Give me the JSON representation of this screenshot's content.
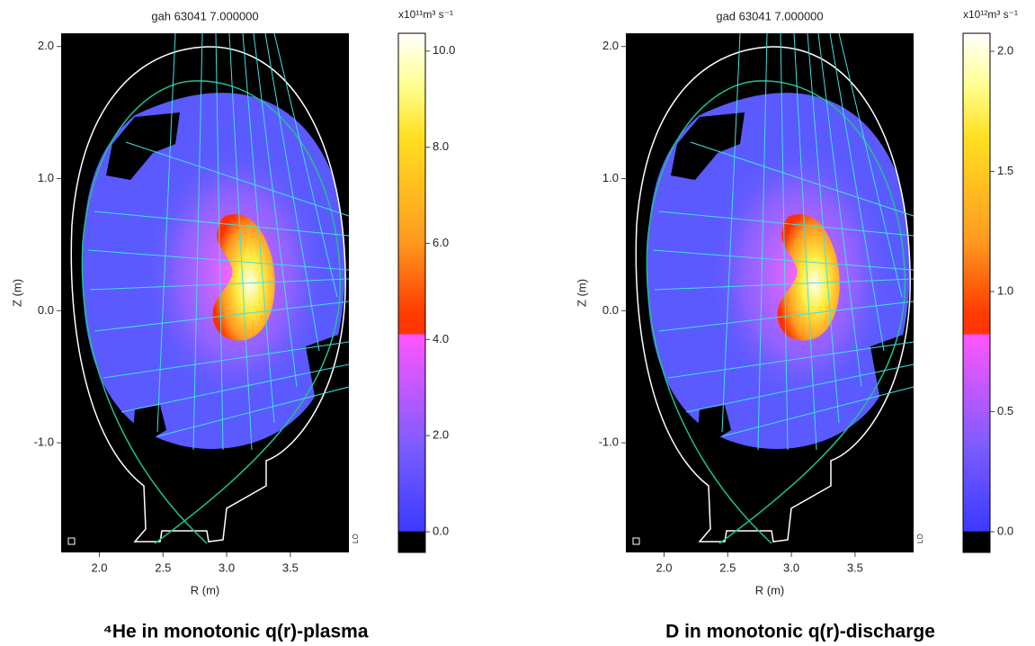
{
  "chart_data": [
    {
      "type": "image",
      "title": "gah  63041 7.000000",
      "caption": "⁴He in monotonic q(r)-plasma",
      "xlabel": "R (m)",
      "ylabel": "Z (m)",
      "annotation": "LO",
      "xlim": [
        1.7,
        3.96
      ],
      "ylim": [
        -1.83,
        2.1
      ],
      "xticks": [
        {
          "value": 2,
          "label": "2.0"
        },
        {
          "value": 2.5,
          "label": "2.5"
        },
        {
          "value": 3,
          "label": "3.0"
        },
        {
          "value": 3.5,
          "label": "3.5"
        }
      ],
      "yticks": [
        {
          "value": -1,
          "label": "-1.0"
        },
        {
          "value": 0,
          "label": "0.0"
        },
        {
          "value": 1,
          "label": "1.0"
        },
        {
          "value": 2,
          "label": "2.0"
        }
      ],
      "colorbar": {
        "label": "x10¹¹m³ s⁻¹",
        "lim": [
          -0.43,
          10.37
        ],
        "ticks": [
          {
            "value": 0,
            "label": "0.0"
          },
          {
            "value": 2,
            "label": "2.0"
          },
          {
            "value": 4,
            "label": "4.0"
          },
          {
            "value": 6,
            "label": "6.0"
          },
          {
            "value": 8,
            "label": "8.0"
          },
          {
            "value": 10,
            "label": "10.0"
          }
        ]
      }
    },
    {
      "type": "image",
      "title": "gad  63041 7.000000",
      "caption": "D in monotonic q(r)-discharge",
      "xlabel": "R (m)",
      "ylabel": "Z (m)",
      "annotation": "LO",
      "xlim": [
        1.7,
        3.96
      ],
      "ylim": [
        -1.83,
        2.1
      ],
      "xticks": [
        {
          "value": 2,
          "label": "2.0"
        },
        {
          "value": 2.5,
          "label": "2.5"
        },
        {
          "value": 3,
          "label": "3.0"
        },
        {
          "value": 3.5,
          "label": "3.5"
        }
      ],
      "yticks": [
        {
          "value": -1,
          "label": "-1.0"
        },
        {
          "value": 0,
          "label": "0.0"
        },
        {
          "value": 1,
          "label": "1.0"
        },
        {
          "value": 2,
          "label": "2.0"
        }
      ],
      "colorbar": {
        "label": "x10¹²m³ s⁻¹",
        "lim": [
          -0.086,
          2.075
        ],
        "ticks": [
          {
            "value": 0,
            "label": "0.0"
          },
          {
            "value": 0.5,
            "label": "0.5"
          },
          {
            "value": 1,
            "label": "1.0"
          },
          {
            "value": 1.5,
            "label": "1.5"
          },
          {
            "value": 2,
            "label": "2.0"
          }
        ]
      }
    }
  ]
}
